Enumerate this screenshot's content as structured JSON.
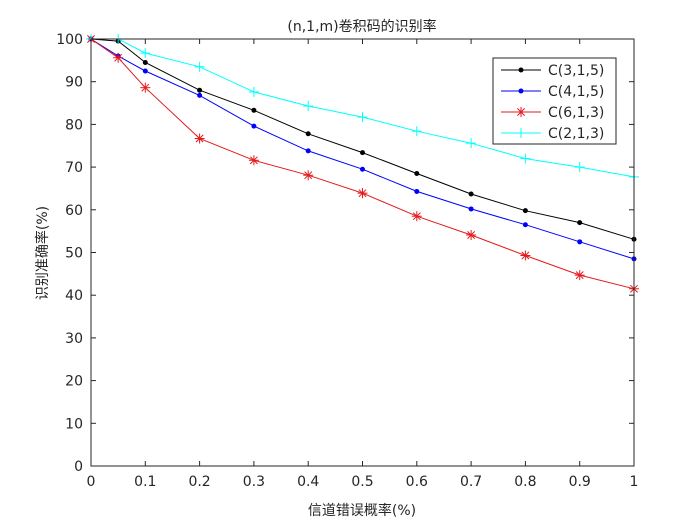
{
  "chart_data": {
    "type": "line",
    "title": "(n,1,m)卷积码的识别率",
    "xlabel": "信道错误概率(%)",
    "ylabel": "识别准确率(%)",
    "xlim": [
      0,
      1
    ],
    "ylim": [
      0,
      100
    ],
    "xticks": [
      "0",
      "0.1",
      "0.2",
      "0.3",
      "0.4",
      "0.5",
      "0.6",
      "0.7",
      "0.8",
      "0.9",
      "1"
    ],
    "yticks": [
      "0",
      "10",
      "20",
      "30",
      "40",
      "50",
      "60",
      "70",
      "80",
      "90",
      "100"
    ],
    "grid": false,
    "legend_position": "top-right",
    "x": [
      0,
      0.05,
      0.1,
      0.2,
      0.3,
      0.4,
      0.5,
      0.6,
      0.7,
      0.8,
      0.9,
      1
    ],
    "series": [
      {
        "name": "C(3,1,5)",
        "color": "#000000",
        "marker": "dot",
        "values": [
          100,
          99.5,
          94.5,
          88,
          83.3,
          77.8,
          73.4,
          68.5,
          63.7,
          59.8,
          57,
          53.1
        ]
      },
      {
        "name": "C(4,1,5)",
        "color": "#0000ff",
        "marker": "dot",
        "values": [
          100,
          96,
          92.5,
          86.8,
          79.6,
          73.8,
          69.5,
          64.3,
          60.2,
          56.5,
          52.5,
          48.5
        ]
      },
      {
        "name": "C(6,1,3)",
        "color": "#e41a1c",
        "marker": "asterisk",
        "values": [
          100,
          95.6,
          88.6,
          76.7,
          71.6,
          68.1,
          63.9,
          58.5,
          54.1,
          49.3,
          44.7,
          41.5
        ]
      },
      {
        "name": "C(2,1,3)",
        "color": "#00ffff",
        "marker": "plus",
        "values": [
          100,
          100,
          96.7,
          93.5,
          87.6,
          84.3,
          81.7,
          78.4,
          75.6,
          72,
          70,
          67.7
        ]
      }
    ]
  }
}
